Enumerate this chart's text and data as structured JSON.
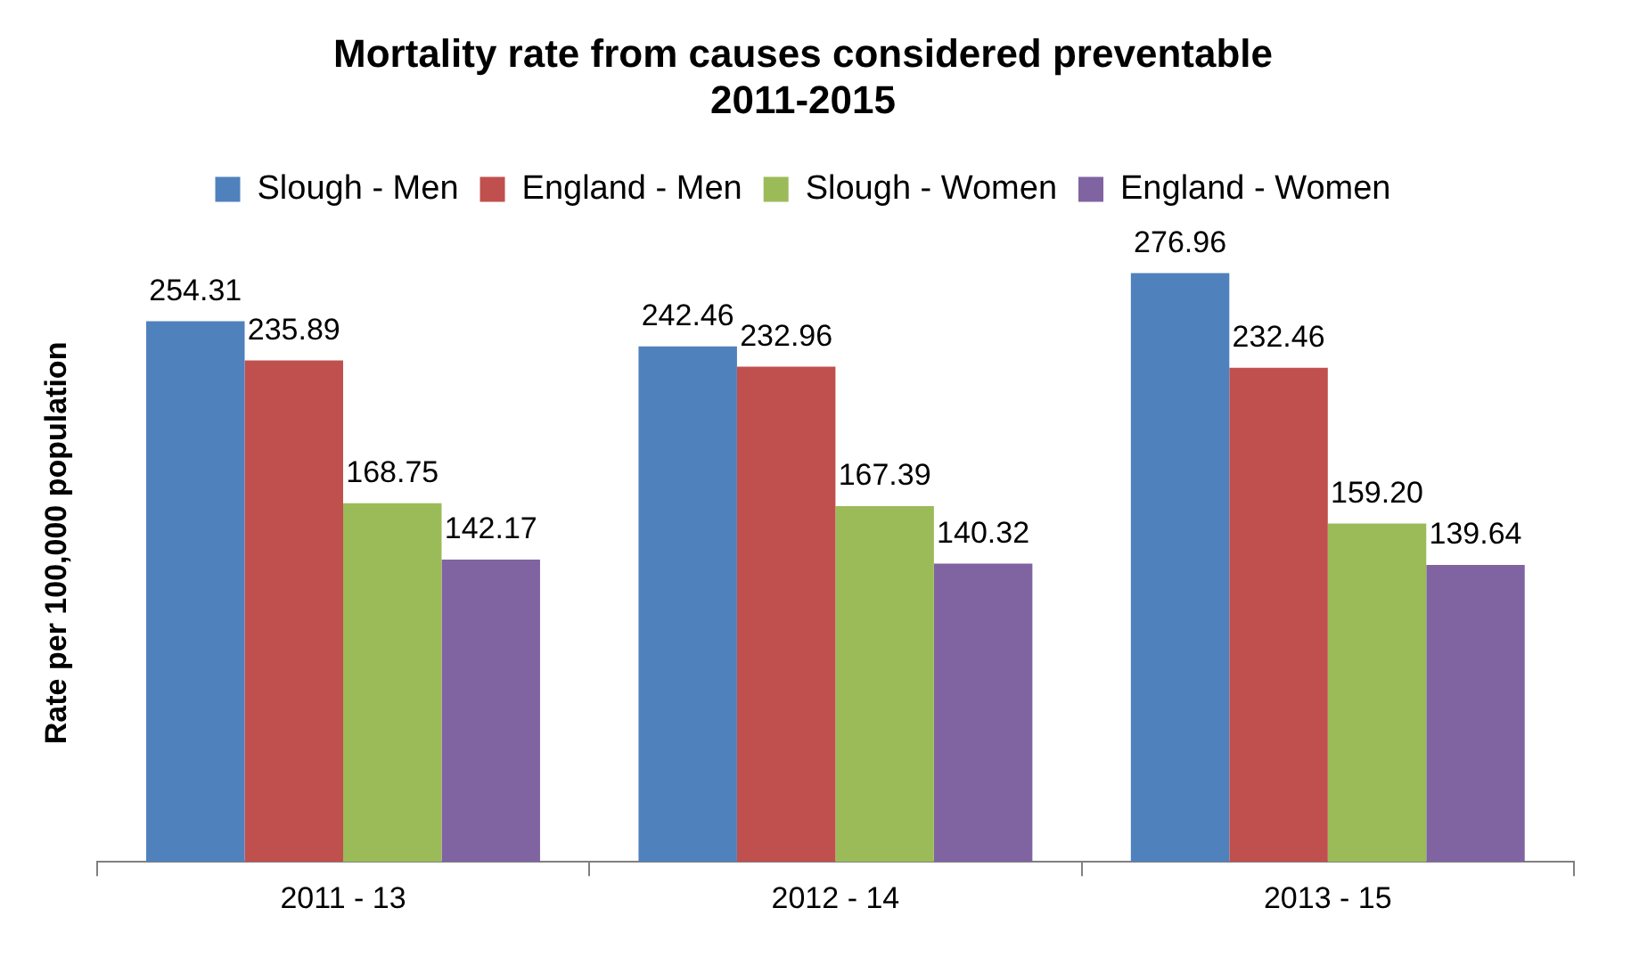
{
  "chart_data": {
    "type": "bar",
    "title": "Mortality rate from causes considered preventable\n2011-2015",
    "ylabel": "Rate per 100,000 population",
    "categories": [
      "2011 - 13",
      "2012 - 14",
      "2013 - 15"
    ],
    "legend": "top",
    "grid": false,
    "series": [
      {
        "name": "Slough - Men",
        "color": "#4f81bd",
        "values": [
          254.31,
          242.46,
          276.96
        ],
        "value_labels": [
          "254.31",
          "242.46",
          "276.96"
        ]
      },
      {
        "name": "England - Men",
        "color": "#c0504d",
        "values": [
          235.89,
          232.96,
          232.46
        ],
        "value_labels": [
          "235.89",
          "232.96",
          "232.46"
        ]
      },
      {
        "name": "Slough - Women",
        "color": "#9bbb59",
        "values": [
          168.75,
          167.39,
          159.2
        ],
        "value_labels": [
          "168.75",
          "167.39",
          "159.20"
        ]
      },
      {
        "name": "England - Women",
        "color": "#8064a2",
        "values": [
          142.17,
          140.32,
          139.64
        ],
        "value_labels": [
          "142.17",
          "140.32",
          "139.64"
        ]
      }
    ]
  }
}
